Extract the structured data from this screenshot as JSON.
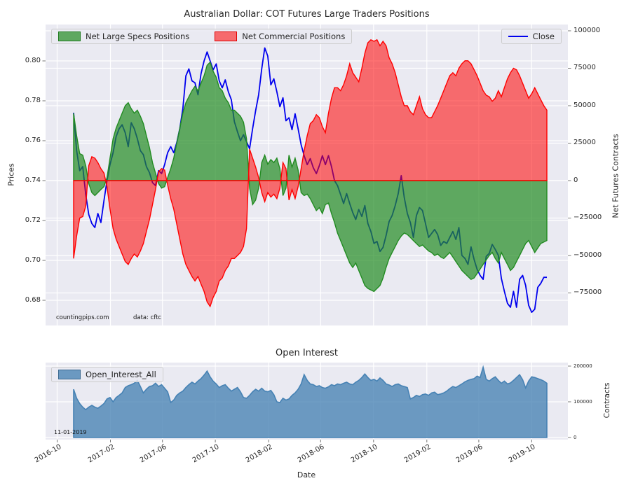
{
  "title": "Australian Dollar: COT Futures Large Traders Positions",
  "oi_title": "Open Interest",
  "legend": {
    "specs": "Net Large Specs Positions",
    "commercials": "Net Commercial Positions",
    "close": "Close",
    "oi": "Open_Interest_All"
  },
  "axis_labels": {
    "price": "Prices",
    "contracts": "Net Futures Contracts",
    "oi": "Contracts",
    "date": "Date"
  },
  "annotations": {
    "source": "countingpips.com",
    "data_source": "data: cftc",
    "last_date": "11-01-2019"
  },
  "colors": {
    "axes_bg": "#EAEAF2",
    "grid": "#FFFFFF",
    "specs_green": "#228B22",
    "commercials_red": "#FF0000",
    "close_blue": "#0000EE",
    "oi_steel": "#4682B4",
    "text": "#262626"
  },
  "chart_data": {
    "type": "area+line",
    "interval": "weekly",
    "date_start": "2016-11-08",
    "date_end": "2019-11-01",
    "x_ticks": [
      {
        "label": "2016-10",
        "week": -5.43
      },
      {
        "label": "2017-02",
        "week": 12.14
      },
      {
        "label": "2017-06",
        "week": 29.29
      },
      {
        "label": "2017-10",
        "week": 46.71
      },
      {
        "label": "2018-02",
        "week": 64.29
      },
      {
        "label": "2018-06",
        "week": 81.43
      },
      {
        "label": "2018-10",
        "week": 98.86
      },
      {
        "label": "2019-02",
        "week": 116.43
      },
      {
        "label": "2019-06",
        "week": 133.57
      },
      {
        "label": "2019-10",
        "week": 151.0
      }
    ],
    "main": {
      "ylim_price": [
        0.667,
        0.818
      ],
      "ylim_contracts": [
        -96700,
        104200
      ],
      "price_ticks": [
        {
          "label": "0.68",
          "value": 0.68
        },
        {
          "label": "0.70",
          "value": 0.7
        },
        {
          "label": "0.72",
          "value": 0.72
        },
        {
          "label": "0.74",
          "value": 0.74
        },
        {
          "label": "0.76",
          "value": 0.76
        },
        {
          "label": "0.78",
          "value": 0.78
        },
        {
          "label": "0.80",
          "value": 0.8
        }
      ],
      "contracts_ticks": [
        {
          "label": "100000",
          "value": 100000
        },
        {
          "label": "75000",
          "value": 75000
        },
        {
          "label": "50000",
          "value": 50000
        },
        {
          "label": "25000",
          "value": 25000
        },
        {
          "label": "0",
          "value": 0
        },
        {
          "label": "−25000",
          "value": -25000
        },
        {
          "label": "−50000",
          "value": -50000
        },
        {
          "label": "−75000",
          "value": -75000
        }
      ],
      "net_large_specs": [
        45000,
        30000,
        18000,
        17000,
        10000,
        -2000,
        -8000,
        -10000,
        -8000,
        -6000,
        -4000,
        2000,
        15000,
        28000,
        35000,
        40000,
        45000,
        50000,
        52000,
        48000,
        45000,
        47000,
        43000,
        38000,
        30000,
        22000,
        12000,
        5000,
        -2000,
        -5000,
        -4000,
        2000,
        8000,
        15000,
        25000,
        35000,
        45000,
        52000,
        56000,
        60000,
        63000,
        60000,
        65000,
        70000,
        77000,
        79000,
        73000,
        69000,
        62000,
        60000,
        55000,
        52000,
        47000,
        47000,
        45000,
        43000,
        39000,
        28000,
        -5000,
        -16000,
        -13000,
        -5000,
        12000,
        17000,
        11000,
        14000,
        12000,
        15000,
        8000,
        -10000,
        -5000,
        17000,
        9000,
        15000,
        7000,
        -8000,
        -10000,
        -9000,
        -12000,
        -16000,
        -20000,
        -18000,
        -22000,
        -16000,
        -15000,
        -22000,
        -28000,
        -35000,
        -40000,
        -45000,
        -50000,
        -55000,
        -58000,
        -55000,
        -60000,
        -65000,
        -70000,
        -72000,
        -73000,
        -74000,
        -72000,
        -70000,
        -65000,
        -58000,
        -52000,
        -48000,
        -44000,
        -40000,
        -37000,
        -35000,
        -36000,
        -38000,
        -40000,
        -42000,
        -44000,
        -43000,
        -45000,
        -47000,
        -48000,
        -50000,
        -49000,
        -51000,
        -52000,
        -50000,
        -48000,
        -51000,
        -54000,
        -57000,
        -60000,
        -62000,
        -64000,
        -66000,
        -65000,
        -62000,
        -59000,
        -56000,
        -53000,
        -50000,
        -48000,
        -52000,
        -55000,
        -48000,
        -52000,
        -56000,
        -60000,
        -58000,
        -54000,
        -50000,
        -46000,
        -42000,
        -40000,
        -44000,
        -48000,
        -45000,
        -42000,
        -41000,
        -40000
      ],
      "net_commercials": [
        -52000,
        -37000,
        -25000,
        -24000,
        -17000,
        10000,
        16000,
        15000,
        12000,
        8000,
        5000,
        -4000,
        -19000,
        -32000,
        -39000,
        -44000,
        -49000,
        -54000,
        -56000,
        -52000,
        -49000,
        -51000,
        -47000,
        -42000,
        -34000,
        -26000,
        -16000,
        -6000,
        6000,
        8000,
        7000,
        -3000,
        -12000,
        -19000,
        -29000,
        -39000,
        -49000,
        -56000,
        -60000,
        -64000,
        -67000,
        -64000,
        -69000,
        -74000,
        -81000,
        -84000,
        -78000,
        -74000,
        -67000,
        -65000,
        -60000,
        -57000,
        -52000,
        -52000,
        -50000,
        -48000,
        -44000,
        -32000,
        21000,
        15000,
        9000,
        2000,
        -8000,
        -14000,
        -8000,
        -11000,
        -9000,
        -12000,
        -5000,
        12000,
        8000,
        -13000,
        -6000,
        -12000,
        -4000,
        8000,
        20000,
        30000,
        38000,
        40000,
        44000,
        42000,
        36000,
        32000,
        45000,
        55000,
        62000,
        62000,
        60000,
        64000,
        70000,
        78000,
        72000,
        69000,
        66000,
        75000,
        85000,
        92000,
        94000,
        93000,
        94000,
        90000,
        93000,
        90000,
        82000,
        78000,
        72000,
        64000,
        56000,
        50000,
        50000,
        46000,
        44000,
        50000,
        56000,
        48000,
        44000,
        42000,
        42000,
        46000,
        50000,
        55000,
        60000,
        65000,
        70000,
        72000,
        70000,
        75000,
        78000,
        80000,
        80000,
        78000,
        74000,
        70000,
        65000,
        60000,
        57000,
        56000,
        53000,
        55000,
        60000,
        56000,
        62000,
        68000,
        72000,
        75000,
        74000,
        70000,
        65000,
        60000,
        55000,
        58000,
        62000,
        58000,
        54000,
        50000,
        47000
      ],
      "close": [
        0.774,
        0.755,
        0.745,
        0.747,
        0.733,
        0.723,
        0.7185,
        0.7165,
        0.7235,
        0.719,
        0.73,
        0.74,
        0.748,
        0.754,
        0.762,
        0.766,
        0.768,
        0.764,
        0.757,
        0.769,
        0.766,
        0.761,
        0.755,
        0.753,
        0.747,
        0.744,
        0.739,
        0.7375,
        0.745,
        0.7435,
        0.748,
        0.754,
        0.757,
        0.754,
        0.759,
        0.766,
        0.776,
        0.7925,
        0.796,
        0.79,
        0.789,
        0.783,
        0.7935,
        0.8,
        0.8045,
        0.8,
        0.7955,
        0.7985,
        0.79,
        0.7865,
        0.7905,
        0.7845,
        0.7805,
        0.7695,
        0.7645,
        0.76,
        0.763,
        0.7595,
        0.756,
        0.766,
        0.775,
        0.783,
        0.796,
        0.8065,
        0.8025,
        0.788,
        0.791,
        0.7845,
        0.777,
        0.7815,
        0.77,
        0.7715,
        0.7655,
        0.7735,
        0.766,
        0.758,
        0.7525,
        0.748,
        0.751,
        0.7465,
        0.7435,
        0.7475,
        0.7525,
        0.748,
        0.7525,
        0.747,
        0.74,
        0.7375,
        0.733,
        0.7285,
        0.7335,
        0.7285,
        0.724,
        0.7205,
        0.7255,
        0.722,
        0.7275,
        0.7185,
        0.7145,
        0.7085,
        0.7095,
        0.7045,
        0.7065,
        0.7125,
        0.7195,
        0.7225,
        0.7275,
        0.7335,
        0.7425,
        0.7315,
        0.7235,
        0.719,
        0.7115,
        0.7225,
        0.7265,
        0.725,
        0.7185,
        0.7115,
        0.7135,
        0.7155,
        0.713,
        0.7075,
        0.7095,
        0.7085,
        0.7115,
        0.7145,
        0.7105,
        0.7165,
        0.7025,
        0.701,
        0.698,
        0.7068,
        0.7005,
        0.6955,
        0.6925,
        0.6905,
        0.702,
        0.7035,
        0.708,
        0.7055,
        0.7025,
        0.691,
        0.6845,
        0.6785,
        0.6765,
        0.6845,
        0.6765,
        0.6905,
        0.6925,
        0.6875,
        0.6775,
        0.674,
        0.6755,
        0.6865,
        0.6885,
        0.6915,
        0.6915
      ]
    },
    "open_interest": {
      "ylim": [
        0,
        210000
      ],
      "ticks": [
        {
          "label": "0",
          "value": 0
        },
        {
          "label": "100000",
          "value": 100000
        },
        {
          "label": "200000",
          "value": 200000
        }
      ],
      "values": [
        135000,
        110000,
        95000,
        85000,
        78000,
        85000,
        90000,
        85000,
        82000,
        88000,
        95000,
        108000,
        112000,
        100000,
        112000,
        118000,
        125000,
        140000,
        145000,
        148000,
        152000,
        160000,
        143000,
        125000,
        135000,
        143000,
        145000,
        152000,
        143000,
        148000,
        138000,
        128000,
        98000,
        105000,
        118000,
        125000,
        130000,
        140000,
        148000,
        155000,
        150000,
        158000,
        165000,
        175000,
        186000,
        170000,
        158000,
        150000,
        140000,
        145000,
        148000,
        138000,
        130000,
        135000,
        140000,
        128000,
        112000,
        110000,
        118000,
        128000,
        135000,
        130000,
        138000,
        130000,
        128000,
        132000,
        120000,
        100000,
        98000,
        110000,
        105000,
        108000,
        118000,
        125000,
        135000,
        150000,
        176000,
        160000,
        150000,
        148000,
        143000,
        145000,
        140000,
        138000,
        142000,
        148000,
        145000,
        150000,
        148000,
        152000,
        155000,
        150000,
        148000,
        155000,
        160000,
        168000,
        178000,
        168000,
        160000,
        163000,
        158000,
        167000,
        160000,
        150000,
        147000,
        143000,
        148000,
        150000,
        145000,
        143000,
        140000,
        108000,
        112000,
        118000,
        115000,
        120000,
        122000,
        118000,
        125000,
        127000,
        120000,
        122000,
        125000,
        130000,
        137000,
        143000,
        140000,
        145000,
        150000,
        156000,
        160000,
        163000,
        165000,
        172000,
        168000,
        197000,
        163000,
        158000,
        165000,
        170000,
        160000,
        152000,
        158000,
        150000,
        153000,
        160000,
        168000,
        176000,
        162000,
        139000,
        158000,
        170000,
        168000,
        165000,
        162000,
        158000,
        152000
      ]
    }
  }
}
